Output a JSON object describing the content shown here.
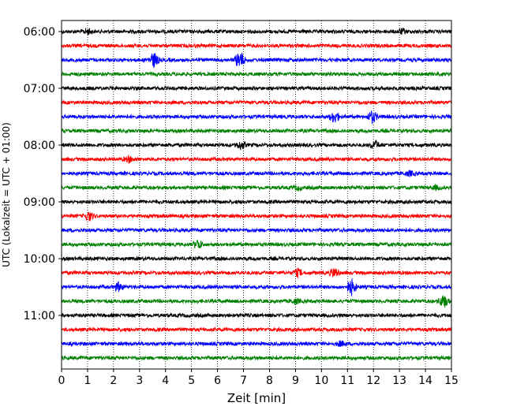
{
  "chart_data": {
    "type": "line",
    "title": "",
    "xlabel": "Zeit  [min]",
    "ylabel": "UTC (Lokalzeit = UTC + 01:00)",
    "xlim": [
      0,
      15
    ],
    "x_ticks": [
      0,
      1,
      2,
      3,
      4,
      5,
      6,
      7,
      8,
      9,
      10,
      11,
      12,
      13,
      14,
      15
    ],
    "x_tick_labels": [
      "0",
      "1",
      "2",
      "3",
      "4",
      "5",
      "6",
      "7",
      "8",
      "9",
      "10",
      "11",
      "12",
      "13",
      "14",
      "15"
    ],
    "y_tick_labels": [
      "06:00",
      "07:00",
      "08:00",
      "09:00",
      "10:00",
      "11:00"
    ],
    "vertical_grid": true,
    "grid_style": "dotted",
    "trace_colors": [
      "#000000",
      "#ff0000",
      "#0000ff",
      "#008000"
    ],
    "traces": [
      {
        "start": "06:00",
        "color": "#000000",
        "events": [
          [
            1.0,
            0.6
          ],
          [
            13.1,
            0.5
          ]
        ]
      },
      {
        "start": "06:15",
        "color": "#ff0000",
        "events": []
      },
      {
        "start": "06:30",
        "color": "#0000ff",
        "events": [
          [
            3.55,
            1.6
          ],
          [
            6.85,
            2.0
          ]
        ]
      },
      {
        "start": "06:45",
        "color": "#008000",
        "events": []
      },
      {
        "start": "07:00",
        "color": "#000000",
        "events": []
      },
      {
        "start": "07:15",
        "color": "#ff0000",
        "events": []
      },
      {
        "start": "07:30",
        "color": "#0000ff",
        "events": [
          [
            10.5,
            1.3
          ],
          [
            11.95,
            1.3
          ]
        ]
      },
      {
        "start": "07:45",
        "color": "#008000",
        "events": []
      },
      {
        "start": "08:00",
        "color": "#000000",
        "events": [
          [
            6.9,
            0.9
          ],
          [
            12.05,
            0.9
          ]
        ]
      },
      {
        "start": "08:15",
        "color": "#ff0000",
        "events": [
          [
            2.6,
            0.6
          ]
        ]
      },
      {
        "start": "08:30",
        "color": "#0000ff",
        "events": [
          [
            13.4,
            0.5
          ]
        ]
      },
      {
        "start": "08:45",
        "color": "#008000",
        "events": [
          [
            9.1,
            0.4
          ],
          [
            14.4,
            0.4
          ]
        ]
      },
      {
        "start": "09:00",
        "color": "#000000",
        "events": []
      },
      {
        "start": "09:15",
        "color": "#ff0000",
        "events": [
          [
            1.05,
            1.0
          ]
        ]
      },
      {
        "start": "09:30",
        "color": "#0000ff",
        "events": []
      },
      {
        "start": "09:45",
        "color": "#008000",
        "events": [
          [
            5.25,
            1.0
          ]
        ]
      },
      {
        "start": "10:00",
        "color": "#000000",
        "events": []
      },
      {
        "start": "10:15",
        "color": "#ff0000",
        "events": [
          [
            9.1,
            0.8
          ],
          [
            10.5,
            1.0
          ]
        ]
      },
      {
        "start": "10:30",
        "color": "#0000ff",
        "events": [
          [
            2.2,
            0.9
          ],
          [
            11.15,
            1.8
          ]
        ]
      },
      {
        "start": "10:45",
        "color": "#008000",
        "events": [
          [
            9.0,
            0.5
          ],
          [
            14.7,
            1.4
          ]
        ]
      },
      {
        "start": "11:00",
        "color": "#000000",
        "events": []
      },
      {
        "start": "11:15",
        "color": "#ff0000",
        "events": []
      },
      {
        "start": "11:30",
        "color": "#0000ff",
        "events": [
          [
            10.75,
            0.5
          ]
        ]
      },
      {
        "start": "11:45",
        "color": "#008000",
        "events": []
      }
    ]
  }
}
